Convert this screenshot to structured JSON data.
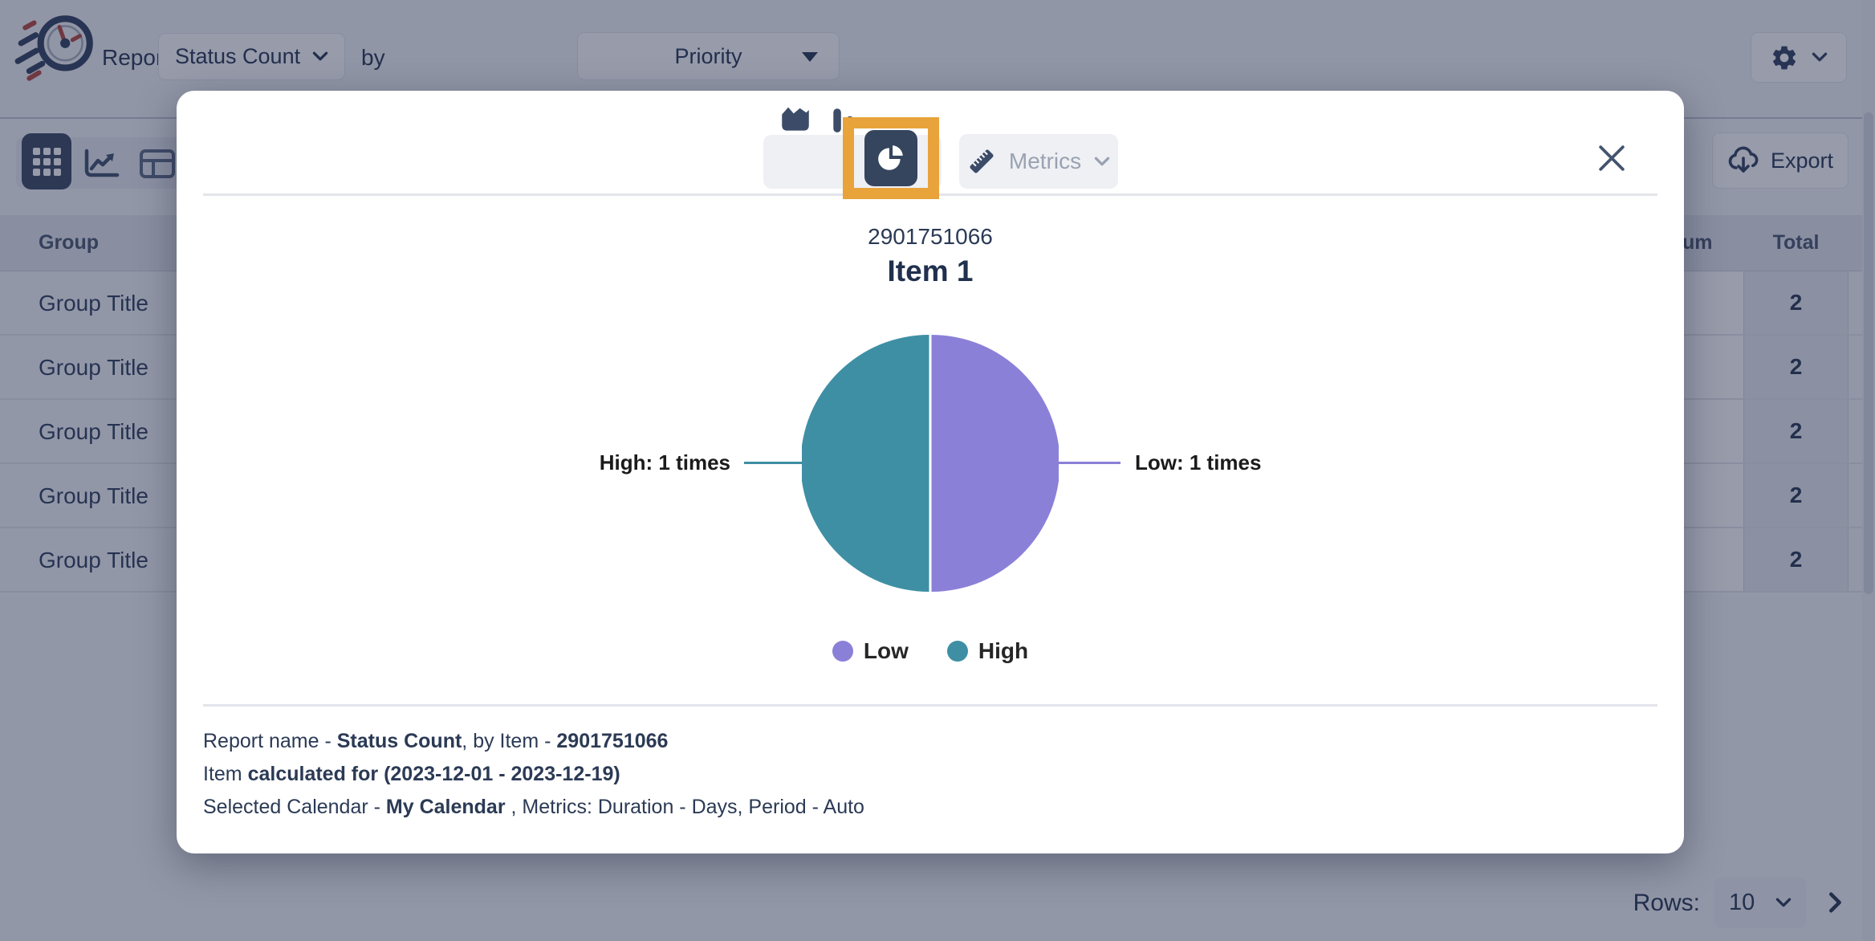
{
  "header": {
    "report_label": "Report:",
    "report_select": {
      "value": "Status Count"
    },
    "by_label": "by",
    "group_by_select": {
      "value": "Priority"
    }
  },
  "toolbar": {
    "export_label": "Export"
  },
  "table": {
    "headers": {
      "group": "Group",
      "sum_partial": "um",
      "total": "Total"
    },
    "rows": [
      {
        "group": "Group Title",
        "total": "2"
      },
      {
        "group": "Group Title",
        "total": "2"
      },
      {
        "group": "Group Title",
        "total": "2"
      },
      {
        "group": "Group Title",
        "total": "2"
      },
      {
        "group": "Group Title",
        "total": "2"
      }
    ]
  },
  "pagination": {
    "rows_label": "Rows:",
    "rows_per_page": "10"
  },
  "modal": {
    "metrics_label": "Metrics",
    "subtitle": "2901751066",
    "title": "Item 1",
    "footer_lines": [
      [
        {
          "t": "Report name - ",
          "b": false
        },
        {
          "t": "Status Count",
          "b": true
        },
        {
          "t": ", by Item - ",
          "b": false
        },
        {
          "t": "2901751066",
          "b": true
        }
      ],
      [
        {
          "t": "Item ",
          "b": false
        },
        {
          "t": "calculated for (2023-12-01 - 2023-12-19)",
          "b": true
        }
      ],
      [
        {
          "t": "Selected Calendar - ",
          "b": false
        },
        {
          "t": "My Calendar",
          "b": true
        },
        {
          "t": " , Metrics: Duration - Days, Period - Auto",
          "b": false
        }
      ]
    ]
  },
  "chart_data": {
    "type": "pie",
    "title": "Item 1",
    "subtitle": "2901751066",
    "slices": [
      {
        "label": "Low",
        "value": 1,
        "unit": "times",
        "color": "#8b80d8",
        "callout": "Low: 1 times",
        "side": "right"
      },
      {
        "label": "High",
        "value": 1,
        "unit": "times",
        "color": "#3e8fa4",
        "callout": "High: 1 times",
        "side": "left"
      }
    ],
    "legend_items": [
      {
        "label": "Low",
        "color": "#8b80d8"
      },
      {
        "label": "High",
        "color": "#3e8fa4"
      }
    ],
    "legend_position": "bottom",
    "total_value": 2
  },
  "icons": {
    "logo": "speeding-clock",
    "report_chevron": "chevron-down",
    "group_by_caret": "caret-down",
    "settings": "gear",
    "settings_chevron": "chevron-down",
    "view_grid": "grid-3x3",
    "view_trend": "line-chart",
    "view_layout": "layout-table",
    "export": "cloud-download",
    "chart_area": "area-chart",
    "chart_bar": "bar-chart",
    "chart_pie": "pie-chart",
    "metrics": "ruler",
    "metrics_chevron": "chevron-down",
    "close": "x",
    "rows_chevron": "chevron-down",
    "next_page": "chevron-right"
  },
  "colors": {
    "accent_highlight": "#e8a33b",
    "pie_low": "#8b80d8",
    "pie_high": "#3e8fa4",
    "navy_text": "#24334f",
    "selected_button": "#36455e",
    "muted_text": "#9aa2b1"
  }
}
